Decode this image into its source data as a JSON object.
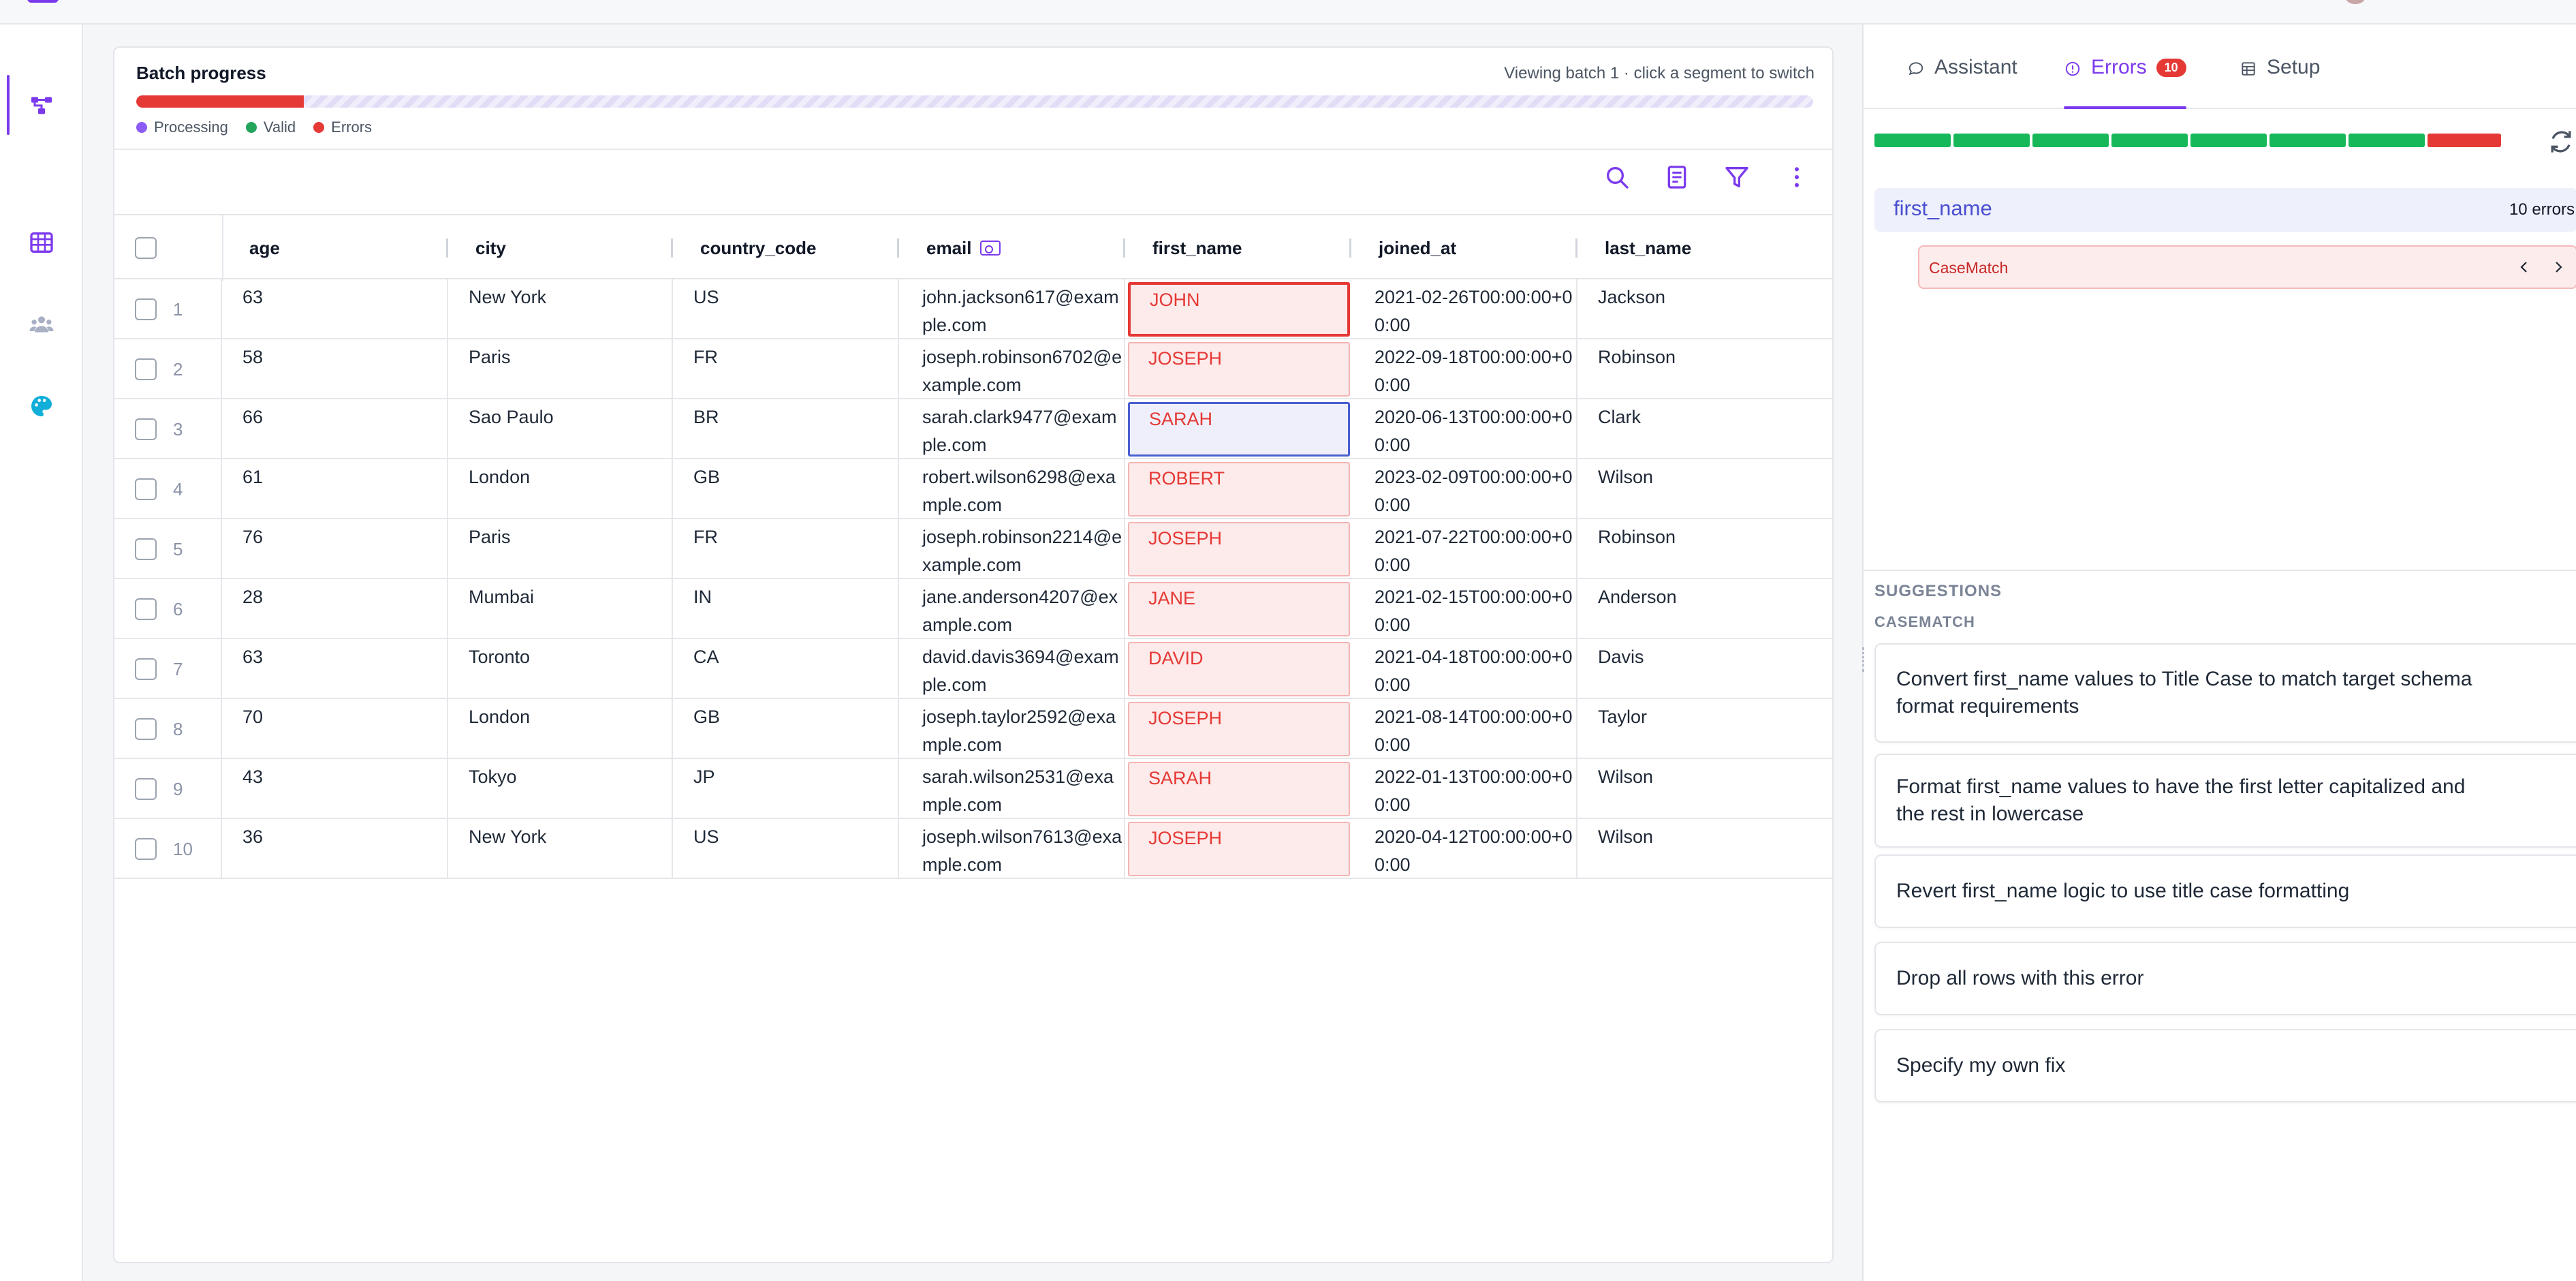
{
  "batch": {
    "title": "Batch progress",
    "hint": "Viewing batch 1 · click a segment to switch",
    "error_fraction": 0.1,
    "legend": [
      {
        "label": "Processing",
        "color": "#8b5cf6"
      },
      {
        "label": "Valid",
        "color": "#22a55b"
      },
      {
        "label": "Errors",
        "color": "#e53935"
      }
    ]
  },
  "toolbar": {
    "icons": [
      "search-icon",
      "form-icon",
      "filter-icon",
      "more-vertical-icon"
    ]
  },
  "rail": {
    "icons": [
      "workflow-icon",
      "table-icon",
      "users-icon",
      "palette-icon"
    ]
  },
  "table": {
    "columns": [
      "age",
      "city",
      "country_code",
      "email",
      "first_name",
      "joined_at",
      "last_name"
    ],
    "rows": [
      {
        "num": "1",
        "age": "63",
        "city": "New York",
        "country_code": "US",
        "email": "john.jackson617@example.com",
        "first_name": "JOHN",
        "joined_at": "2021-02-26T00:00:00+00:00",
        "last_name": "Jackson"
      },
      {
        "num": "2",
        "age": "58",
        "city": "Paris",
        "country_code": "FR",
        "email": "joseph.robinson6702@example.com",
        "first_name": "JOSEPH",
        "joined_at": "2022-09-18T00:00:00+00:00",
        "last_name": "Robinson"
      },
      {
        "num": "3",
        "age": "66",
        "city": "Sao Paulo",
        "country_code": "BR",
        "email": "sarah.clark9477@example.com",
        "first_name": "SARAH",
        "joined_at": "2020-06-13T00:00:00+00:00",
        "last_name": "Clark"
      },
      {
        "num": "4",
        "age": "61",
        "city": "London",
        "country_code": "GB",
        "email": "robert.wilson6298@example.com",
        "first_name": "ROBERT",
        "joined_at": "2023-02-09T00:00:00+00:00",
        "last_name": "Wilson"
      },
      {
        "num": "5",
        "age": "76",
        "city": "Paris",
        "country_code": "FR",
        "email": "joseph.robinson2214@example.com",
        "first_name": "JOSEPH",
        "joined_at": "2021-07-22T00:00:00+00:00",
        "last_name": "Robinson"
      },
      {
        "num": "6",
        "age": "28",
        "city": "Mumbai",
        "country_code": "IN",
        "email": "jane.anderson4207@example.com",
        "first_name": "JANE",
        "joined_at": "2021-02-15T00:00:00+00:00",
        "last_name": "Anderson"
      },
      {
        "num": "7",
        "age": "63",
        "city": "Toronto",
        "country_code": "CA",
        "email": "david.davis3694@example.com",
        "first_name": "DAVID",
        "joined_at": "2021-04-18T00:00:00+00:00",
        "last_name": "Davis"
      },
      {
        "num": "8",
        "age": "70",
        "city": "London",
        "country_code": "GB",
        "email": "joseph.taylor2592@example.com",
        "first_name": "JOSEPH",
        "joined_at": "2021-08-14T00:00:00+00:00",
        "last_name": "Taylor"
      },
      {
        "num": "9",
        "age": "43",
        "city": "Tokyo",
        "country_code": "JP",
        "email": "sarah.wilson2531@example.com",
        "first_name": "SARAH",
        "joined_at": "2022-01-13T00:00:00+00:00",
        "last_name": "Wilson"
      },
      {
        "num": "10",
        "age": "36",
        "city": "New York",
        "country_code": "US",
        "email": "joseph.wilson7613@example.com",
        "first_name": "JOSEPH",
        "joined_at": "2020-04-12T00:00:00+00:00",
        "last_name": "Wilson"
      }
    ]
  },
  "panel": {
    "tabs": [
      {
        "label": "Assistant",
        "icon": "chat-bubble-icon"
      },
      {
        "label": "Errors",
        "icon": "alert-circle-icon",
        "badge": "10"
      },
      {
        "label": "Setup",
        "icon": "table-setup-icon"
      }
    ],
    "column_group": {
      "name": "first_name",
      "count": "10 errors"
    },
    "error_type": "CaseMatch",
    "colors": {
      "valid": "#16b85a",
      "error": "#e53935",
      "accent": "#7c3aed"
    },
    "suggestions_heading": "SUGGESTIONS",
    "suggestions_sub": "CASEMATCH",
    "suggestions": [
      "Convert first_name values to Title Case to match target schema format requirements",
      "Format first_name values to have the first letter capitalized and the rest in lowercase",
      "Revert first_name logic to use title case formatting",
      "Drop all rows with this error",
      "Specify my own fix"
    ]
  }
}
